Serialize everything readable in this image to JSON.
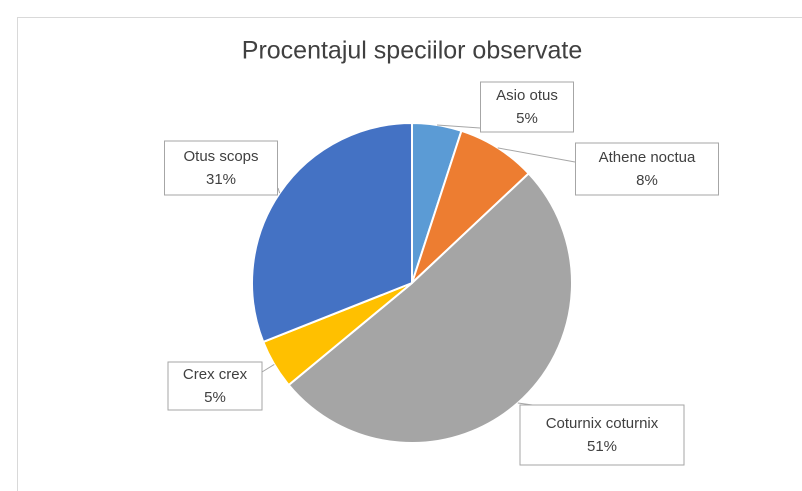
{
  "chart_data": {
    "type": "pie",
    "title": "Procentajul speciilor observate",
    "categories": [
      "Asio otus",
      "Athene noctua",
      "Coturnix coturnix",
      "Crex crex",
      "Otus scops"
    ],
    "values": [
      5,
      8,
      51,
      5,
      31
    ],
    "value_labels": [
      "5%",
      "8%",
      "51%",
      "5%",
      "31%"
    ],
    "colors": [
      "#5b9bd5",
      "#ed7d31",
      "#a5a5a5",
      "#ffc000",
      "#4472c4"
    ]
  }
}
